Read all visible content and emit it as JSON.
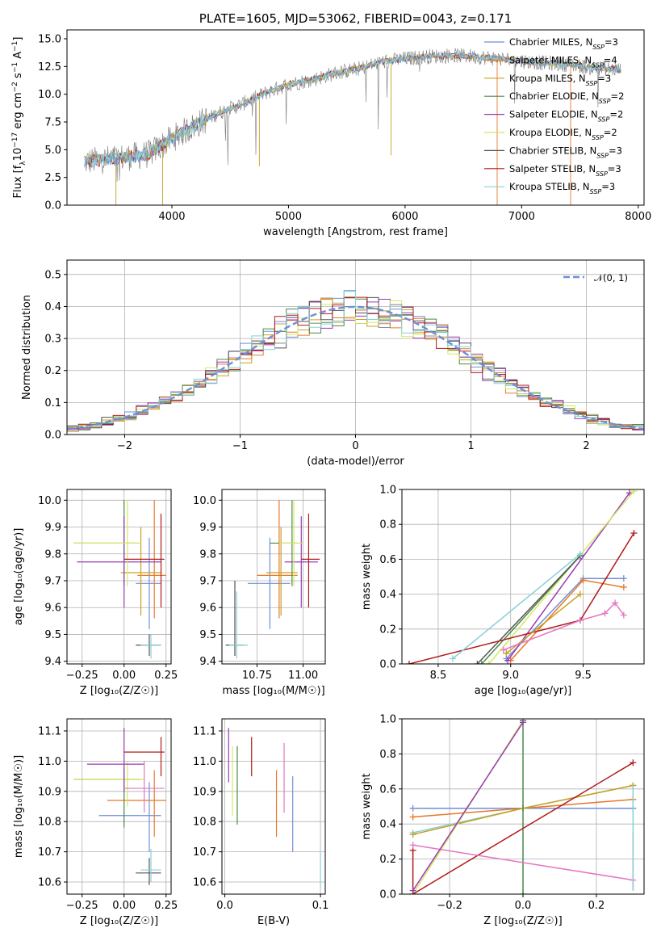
{
  "colors": [
    "#6f8fd6",
    "#e8782a",
    "#c8a020",
    "#4a8a4a",
    "#9a3bb5",
    "#d4e860",
    "#555555",
    "#b01a1a",
    "#88d0d8"
  ],
  "chart_data": [
    {
      "id": "spectrum",
      "type": "line",
      "title": "PLATE=1605, MJD=53062, FIBERID=0043, z=0.171",
      "xlabel": "wavelength [Angstrom, rest frame]",
      "ylabel": "Flux [f",
      "ylabel_parts": [
        "Flux [f",
        "λ",
        "10",
        "−17",
        " erg cm",
        "−2",
        " s",
        "−1",
        " A",
        "−1",
        "]"
      ],
      "xlim": [
        3100,
        8050
      ],
      "ylim": [
        0,
        15.8
      ],
      "xticks": [
        4000,
        5000,
        6000,
        7000,
        8000
      ],
      "xtick_labels": [
        "4000",
        "5000",
        "6000",
        "7000",
        "8000"
      ],
      "yticks": [
        0.0,
        2.5,
        5.0,
        7.5,
        10.0,
        12.5,
        15.0
      ],
      "ytick_labels": [
        "0.0",
        "2.5",
        "5.0",
        "7.5",
        "10.0",
        "12.5",
        "15.0"
      ],
      "continuum": {
        "x": [
          3250,
          3400,
          3600,
          3800,
          4000,
          4200,
          4400,
          4600,
          4800,
          5000,
          5200,
          5400,
          5600,
          5800,
          6000,
          6200,
          6400,
          6600,
          6800,
          7000,
          7200,
          7400,
          7600,
          7850
        ],
        "y": [
          3.9,
          4.1,
          4.3,
          4.6,
          6.0,
          7.2,
          8.3,
          9.1,
          10.1,
          10.9,
          11.3,
          11.9,
          12.3,
          12.9,
          13.2,
          13.4,
          13.5,
          13.4,
          13.2,
          13.0,
          12.8,
          12.7,
          12.4,
          12.2
        ]
      },
      "legend": [
        {
          "name": "Chabrier MILES, N",
          "sub": "SSP",
          "n": "=3"
        },
        {
          "name": "Salpeter MILES, N",
          "sub": "SSP",
          "n": "=4"
        },
        {
          "name": "Kroupa MILES, N",
          "sub": "SSP",
          "n": "=3"
        },
        {
          "name": "Chabrier ELODIE, N",
          "sub": "SSP",
          "n": "=2"
        },
        {
          "name": "Salpeter ELODIE, N",
          "sub": "SSP",
          "n": "=2"
        },
        {
          "name": "Kroupa ELODIE, N",
          "sub": "SSP",
          "n": "=2"
        },
        {
          "name": "Chabrier STELIB, N",
          "sub": "SSP",
          "n": "=3"
        },
        {
          "name": "Salpeter STELIB, N",
          "sub": "SSP",
          "n": "=3"
        },
        {
          "name": "Kroupa STELIB, N",
          "sub": "SSP",
          "n": "=3"
        }
      ],
      "legend_loc": "upper right",
      "grid": false
    },
    {
      "id": "residuals",
      "type": "histogram",
      "xlabel": "(data-model)/error",
      "ylabel": "Normed distribution",
      "xlim": [
        -2.5,
        2.5
      ],
      "ylim": [
        0,
        0.545
      ],
      "xticks": [
        -2,
        -1,
        0,
        1,
        2
      ],
      "xtick_labels": [
        "−2",
        "−1",
        "0",
        "1",
        "2"
      ],
      "yticks": [
        0.0,
        0.1,
        0.2,
        0.3,
        0.4,
        0.5
      ],
      "ytick_labels": [
        "0.0",
        "0.1",
        "0.2",
        "0.3",
        "0.4",
        "0.5"
      ],
      "bin_width": 0.1,
      "legend": [
        {
          "name": "𝒩(0, 1)",
          "style": "dashed"
        }
      ],
      "legend_loc": "upper right",
      "grid": true
    },
    {
      "id": "age_vs_Z",
      "type": "errorbar",
      "xlabel": "Z [log₁₀(Z/Z☉)]",
      "ylabel": "age  [log₁₀(age/yr)]",
      "xlim": [
        -0.34,
        0.28
      ],
      "ylim": [
        9.39,
        10.04
      ],
      "xticks": [
        -0.25,
        0.0,
        0.25
      ],
      "xtick_labels": [
        "−0.25",
        "0.00",
        "0.25"
      ],
      "yticks": [
        9.4,
        9.5,
        9.6,
        9.7,
        9.8,
        9.9,
        10.0
      ],
      "ytick_labels": [
        "9.4",
        "9.5",
        "9.6",
        "9.7",
        "9.8",
        "9.9",
        "10.0"
      ],
      "points": [
        {
          "c": 0,
          "x": 0.15,
          "xe": [
            0.07,
            0.22
          ],
          "y": 9.69,
          "ye": [
            9.52,
            9.86
          ]
        },
        {
          "c": 1,
          "x": 0.18,
          "xe": [
            0.08,
            0.25
          ],
          "y": 9.72,
          "ye": [
            9.56,
            10.0
          ]
        },
        {
          "c": 2,
          "x": 0.1,
          "xe": [
            -0.02,
            0.22
          ],
          "y": 9.73,
          "ye": [
            9.57,
            9.9
          ]
        },
        {
          "c": 3,
          "x": 0.0,
          "xe": [
            -0.3,
            0.08
          ],
          "y": 9.84,
          "ye": [
            9.68,
            10.0
          ]
        },
        {
          "c": 4,
          "x": 0.0,
          "xe": [
            -0.28,
            0.22
          ],
          "y": 9.77,
          "ye": [
            9.6,
            9.94
          ]
        },
        {
          "c": 5,
          "x": 0.02,
          "xe": [
            -0.3,
            0.1
          ],
          "y": 9.84,
          "ye": [
            9.68,
            10.0
          ]
        },
        {
          "c": 6,
          "x": 0.15,
          "xe": [
            0.07,
            0.22
          ],
          "y": 9.46,
          "ye": [
            9.42,
            9.5
          ]
        },
        {
          "c": 7,
          "x": 0.22,
          "xe": [
            0.0,
            0.24
          ],
          "y": 9.78,
          "ye": [
            9.6,
            9.95
          ]
        },
        {
          "c": 8,
          "x": 0.16,
          "xe": [
            0.1,
            0.22
          ],
          "y": 9.46,
          "ye": [
            9.41,
            9.5
          ]
        }
      ],
      "grid": true
    },
    {
      "id": "age_vs_mass",
      "type": "errorbar",
      "xlabel": "mass [log₁₀(M/M☉)]",
      "ylabel": "",
      "xlim": [
        10.56,
        11.12
      ],
      "ylim": [
        9.39,
        10.04
      ],
      "xticks": [
        10.75,
        11.0
      ],
      "xtick_labels": [
        "10.75",
        "11.00"
      ],
      "yticks": [
        9.4,
        9.5,
        9.6,
        9.7,
        9.8,
        9.9,
        10.0
      ],
      "ytick_labels": [
        "9.4",
        "9.5",
        "9.6",
        "9.7",
        "9.8",
        "9.9",
        "10.0"
      ],
      "points": [
        {
          "c": 0,
          "x": 10.82,
          "xe": [
            10.7,
            10.93
          ],
          "y": 9.69,
          "ye": [
            9.52,
            9.86
          ]
        },
        {
          "c": 1,
          "x": 10.87,
          "xe": [
            10.75,
            10.97
          ],
          "y": 9.72,
          "ye": [
            9.56,
            10.0
          ]
        },
        {
          "c": 2,
          "x": 10.88,
          "xe": [
            10.8,
            10.97
          ],
          "y": 9.73,
          "ye": [
            9.57,
            9.9
          ]
        },
        {
          "c": 3,
          "x": 10.94,
          "xe": [
            10.82,
            10.97
          ],
          "y": 9.84,
          "ye": [
            9.68,
            10.0
          ]
        },
        {
          "c": 4,
          "x": 10.99,
          "xe": [
            10.9,
            11.08
          ],
          "y": 9.77,
          "ye": [
            9.6,
            9.94
          ]
        },
        {
          "c": 5,
          "x": 10.95,
          "xe": [
            10.87,
            11.0
          ],
          "y": 9.84,
          "ye": [
            9.68,
            10.0
          ]
        },
        {
          "c": 6,
          "x": 10.63,
          "xe": [
            10.58,
            10.68
          ],
          "y": 9.46,
          "ye": [
            9.42,
            9.7
          ]
        },
        {
          "c": 7,
          "x": 11.03,
          "xe": [
            10.99,
            11.09
          ],
          "y": 9.78,
          "ye": [
            9.6,
            9.95
          ]
        },
        {
          "c": 8,
          "x": 10.64,
          "xe": [
            10.6,
            10.7
          ],
          "y": 9.46,
          "ye": [
            9.41,
            9.66
          ]
        }
      ],
      "grid": true
    },
    {
      "id": "weight_vs_age",
      "type": "line",
      "xlabel": "age  [log₁₀(age/yr)]",
      "ylabel": "mass weight",
      "xlim": [
        8.25,
        9.92
      ],
      "ylim": [
        0,
        1.0
      ],
      "xticks": [
        8.5,
        9.0,
        9.5
      ],
      "xtick_labels": [
        "8.5",
        "9.0",
        "9.5"
      ],
      "yticks": [
        0.0,
        0.2,
        0.4,
        0.6,
        0.8,
        1.0
      ],
      "ytick_labels": [
        "0.0",
        "0.2",
        "0.4",
        "0.6",
        "0.8",
        "1.0"
      ],
      "series": [
        {
          "c": 0,
          "x": [
            8.97,
            9.5,
            9.78
          ],
          "y": [
            0.03,
            0.49,
            0.49
          ]
        },
        {
          "c": 1,
          "x": [
            9.0,
            9.5,
            9.78
          ],
          "y": [
            0.02,
            0.48,
            0.44
          ]
        },
        {
          "c": 4,
          "x": [
            8.98,
            9.82
          ],
          "y": [
            0.02,
            0.98
          ]
        },
        {
          "c": 5,
          "x": [
            8.85,
            9.85
          ],
          "y": [
            0.0,
            0.99
          ]
        },
        {
          "c": 3,
          "x": [
            8.8,
            9.48
          ],
          "y": [
            0.0,
            0.62
          ]
        },
        {
          "c": 6,
          "x": [
            8.77,
            9.48
          ],
          "y": [
            0.0,
            0.62
          ]
        },
        {
          "c": 7,
          "x": [
            8.3,
            9.48,
            9.85
          ],
          "y": [
            0.0,
            0.25,
            0.75
          ]
        },
        {
          "c": 8,
          "x": [
            8.6,
            9.48
          ],
          "y": [
            0.03,
            0.63
          ]
        },
        {
          "c": 2,
          "x": [
            8.97,
            9.48
          ],
          "y": [
            0.06,
            0.4
          ]
        },
        {
          "c": 9,
          "x": [
            8.95,
            9.48,
            9.65,
            9.72,
            9.78
          ],
          "y": [
            0.08,
            0.25,
            0.29,
            0.35,
            0.28
          ]
        }
      ],
      "grid": true
    },
    {
      "id": "mass_vs_Z",
      "type": "errorbar",
      "xlabel": "Z [log₁₀(Z/Z☉)]",
      "ylabel": "mass [log₁₀(M/M☉)]",
      "xlim": [
        -0.34,
        0.28
      ],
      "ylim": [
        10.56,
        11.14
      ],
      "xticks": [
        -0.25,
        0.0,
        0.25
      ],
      "xtick_labels": [
        "−0.25",
        "0.00",
        "0.25"
      ],
      "yticks": [
        10.6,
        10.7,
        10.8,
        10.9,
        11.0,
        11.1
      ],
      "ytick_labels": [
        "10.6",
        "10.7",
        "10.8",
        "10.9",
        "11.0",
        "11.1"
      ],
      "points": [
        {
          "c": 0,
          "x": 0.15,
          "xe": [
            -0.15,
            0.22
          ],
          "y": 10.82,
          "ye": [
            10.7,
            10.93
          ]
        },
        {
          "c": 1,
          "x": 0.18,
          "xe": [
            -0.1,
            0.25
          ],
          "y": 10.87,
          "ye": [
            10.75,
            10.97
          ]
        },
        {
          "c": 3,
          "x": 0.0,
          "xe": [
            -0.3,
            0.1
          ],
          "y": 10.94,
          "ye": [
            10.78,
            10.98
          ]
        },
        {
          "c": 5,
          "x": 0.02,
          "xe": [
            -0.3,
            0.12
          ],
          "y": 10.94,
          "ye": [
            10.85,
            11.0
          ]
        },
        {
          "c": 4,
          "x": 0.0,
          "xe": [
            -0.22,
            0.12
          ],
          "y": 10.99,
          "ye": [
            10.9,
            11.11
          ]
        },
        {
          "c": 9,
          "x": 0.12,
          "xe": [
            0.0,
            0.24
          ],
          "y": 10.91,
          "ye": [
            10.83,
            11.0
          ]
        },
        {
          "c": 6,
          "x": 0.15,
          "xe": [
            0.07,
            0.22
          ],
          "y": 10.63,
          "ye": [
            10.59,
            10.68
          ]
        },
        {
          "c": 7,
          "x": 0.22,
          "xe": [
            0.0,
            0.24
          ],
          "y": 11.03,
          "ye": [
            10.95,
            11.08
          ]
        },
        {
          "c": 8,
          "x": 0.16,
          "xe": [
            0.1,
            0.22
          ],
          "y": 10.64,
          "ye": [
            10.6,
            10.71
          ]
        }
      ],
      "grid": true
    },
    {
      "id": "mass_vs_ebv",
      "type": "errorbar",
      "xlabel": "E(B-V)",
      "ylabel": "",
      "xlim": [
        -0.003,
        0.105
      ],
      "ylim": [
        10.56,
        11.14
      ],
      "xticks": [
        0.0,
        0.1
      ],
      "xtick_labels": [
        "0.0",
        "0.1"
      ],
      "yticks": [
        10.6,
        10.7,
        10.8,
        10.9,
        11.0,
        11.1
      ],
      "ytick_labels": [
        "10.6",
        "10.7",
        "10.8",
        "10.9",
        "11.0",
        "11.1"
      ],
      "points": [
        {
          "c": 4,
          "x": 0.004,
          "y": 11.03,
          "ye": [
            10.93,
            11.11
          ]
        },
        {
          "c": 5,
          "x": 0.008,
          "y": 10.93,
          "ye": [
            10.82,
            11.05
          ]
        },
        {
          "c": 3,
          "x": 0.013,
          "y": 10.94,
          "ye": [
            10.79,
            11.05
          ]
        },
        {
          "c": 7,
          "x": 0.028,
          "y": 11.01,
          "ye": [
            10.95,
            11.08
          ]
        },
        {
          "c": 1,
          "x": 0.054,
          "y": 10.87,
          "ye": [
            10.75,
            10.97
          ]
        },
        {
          "c": 9,
          "x": 0.062,
          "y": 10.95,
          "ye": [
            10.83,
            11.06
          ]
        },
        {
          "c": 0,
          "x": 0.071,
          "y": 10.82,
          "ye": [
            10.7,
            10.95
          ]
        },
        {
          "c": 8,
          "x": 0.1,
          "y": 10.64,
          "ye": [
            10.58,
            10.7
          ]
        }
      ],
      "grid": true
    },
    {
      "id": "weight_vs_Z",
      "type": "line",
      "xlabel": "Z [log₁₀(Z/Z☉)]",
      "ylabel": "mass weight",
      "xlim": [
        -0.33,
        0.33
      ],
      "ylim": [
        0,
        1.0
      ],
      "xticks": [
        -0.2,
        0.0,
        0.2
      ],
      "xtick_labels": [
        "−0.2",
        "0.0",
        "0.2"
      ],
      "yticks": [
        0.0,
        0.2,
        0.4,
        0.6,
        0.8,
        1.0
      ],
      "ytick_labels": [
        "0.0",
        "0.2",
        "0.4",
        "0.6",
        "0.8",
        "1.0"
      ],
      "series": [
        {
          "c": 0,
          "x": [
            -0.3,
            0.0,
            0.3
          ],
          "y": [
            0.49,
            0.49,
            0.49
          ]
        },
        {
          "c": 1,
          "x": [
            -0.3,
            0.0,
            0.3
          ],
          "y": [
            0.44,
            0.49,
            0.54
          ]
        },
        {
          "c": 8,
          "x": [
            -0.3,
            0.0,
            0.3
          ],
          "y": [
            0.35,
            0.49,
            0.62
          ]
        },
        {
          "c": 2,
          "x": [
            -0.3,
            0.0,
            0.3
          ],
          "y": [
            0.34,
            0.49,
            0.62
          ]
        },
        {
          "c": 5,
          "x": [
            -0.3,
            0.0
          ],
          "y": [
            0.0,
            0.99
          ]
        },
        {
          "c": 3,
          "x": [
            0.0,
            0.0
          ],
          "y": [
            0.0,
            0.99
          ]
        },
        {
          "c": 7,
          "x": [
            -0.3,
            -0.3,
            0.3
          ],
          "y": [
            0.25,
            0.0,
            0.75
          ]
        },
        {
          "c": 9,
          "x": [
            -0.3,
            0.3
          ],
          "y": [
            0.28,
            0.08
          ]
        },
        {
          "c": 4,
          "x": [
            -0.3,
            0.0
          ],
          "y": [
            0.02,
            0.98
          ]
        }
      ],
      "verticals": [
        {
          "c": 9,
          "x": 0.3,
          "y": [
            0.02,
            0.35
          ]
        },
        {
          "c": 8,
          "x": 0.3,
          "y": [
            0.02,
            0.62
          ]
        }
      ],
      "grid": true
    }
  ],
  "extra_colors": [
    "#e377c2"
  ]
}
